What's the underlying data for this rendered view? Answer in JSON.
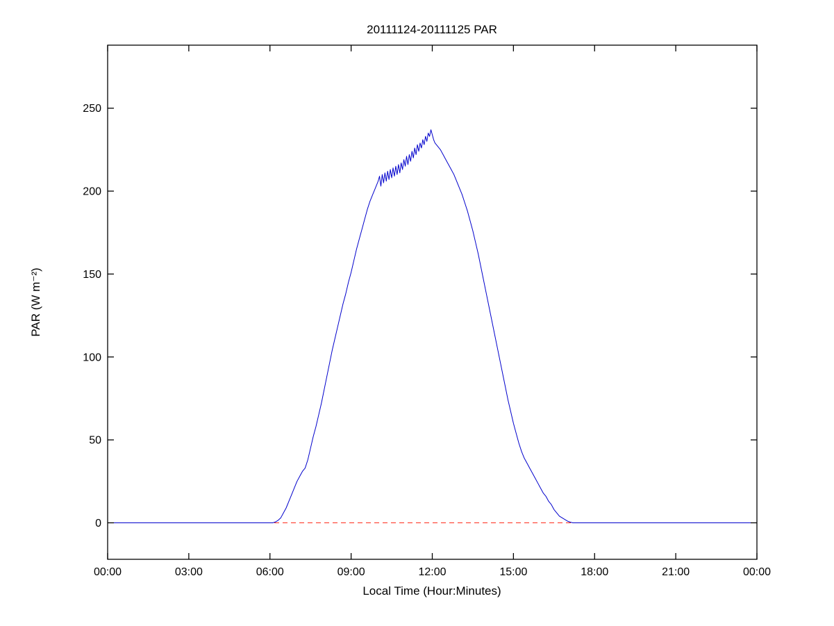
{
  "chart_data": {
    "type": "line",
    "title": "20111124-20111125 PAR",
    "xlabel": "Local Time (Hour:Minutes)",
    "ylabel": "PAR (W m⁻²)",
    "xlim": [
      0,
      24
    ],
    "ylim": [
      -22,
      288
    ],
    "grid": false,
    "legend": "none",
    "x_ticks_hours": [
      0,
      3,
      6,
      9,
      12,
      15,
      18,
      21,
      24
    ],
    "x_tick_labels": [
      "00:00",
      "03:00",
      "06:00",
      "09:00",
      "12:00",
      "15:00",
      "18:00",
      "21:00",
      "00:00"
    ],
    "y_ticks": [
      0,
      50,
      100,
      150,
      200,
      250
    ],
    "colors": {
      "background": "#ffffff",
      "axis": "#000000",
      "par_line": "#0000cc",
      "zero_line": "#ff2a1a"
    },
    "series": [
      {
        "name": "zero-reference",
        "color": "#ff2a1a",
        "style": "dashed",
        "points": [
          [
            0,
            0
          ],
          [
            24,
            0
          ]
        ]
      },
      {
        "name": "PAR",
        "color": "#0000cc",
        "style": "solid",
        "points": [
          [
            0,
            0
          ],
          [
            1,
            0
          ],
          [
            2,
            0
          ],
          [
            3,
            0
          ],
          [
            4,
            0
          ],
          [
            5,
            0
          ],
          [
            5.5,
            0
          ],
          [
            6,
            0
          ],
          [
            6.1,
            0
          ],
          [
            6.2,
            0.5
          ],
          [
            6.3,
            1.5
          ],
          [
            6.4,
            3
          ],
          [
            6.5,
            6
          ],
          [
            6.6,
            9
          ],
          [
            6.7,
            13
          ],
          [
            6.8,
            17
          ],
          [
            6.9,
            21
          ],
          [
            7,
            25
          ],
          [
            7.1,
            28
          ],
          [
            7.2,
            31
          ],
          [
            7.3,
            33
          ],
          [
            7.4,
            38
          ],
          [
            7.5,
            45
          ],
          [
            7.6,
            52
          ],
          [
            7.7,
            58
          ],
          [
            7.8,
            65
          ],
          [
            7.9,
            72
          ],
          [
            8,
            80
          ],
          [
            8.1,
            88
          ],
          [
            8.2,
            96
          ],
          [
            8.3,
            104
          ],
          [
            8.4,
            111
          ],
          [
            8.5,
            118
          ],
          [
            8.6,
            125
          ],
          [
            8.7,
            132
          ],
          [
            8.8,
            138
          ],
          [
            8.9,
            145
          ],
          [
            9,
            151
          ],
          [
            9.1,
            158
          ],
          [
            9.2,
            165
          ],
          [
            9.3,
            171
          ],
          [
            9.4,
            177
          ],
          [
            9.5,
            183
          ],
          [
            9.6,
            189
          ],
          [
            9.7,
            194
          ],
          [
            9.8,
            198
          ],
          [
            9.9,
            202
          ],
          [
            10,
            206
          ],
          [
            10.05,
            209
          ],
          [
            10.1,
            203
          ],
          [
            10.15,
            210
          ],
          [
            10.2,
            205
          ],
          [
            10.25,
            211
          ],
          [
            10.3,
            206
          ],
          [
            10.35,
            212
          ],
          [
            10.4,
            207
          ],
          [
            10.45,
            213
          ],
          [
            10.5,
            208
          ],
          [
            10.55,
            214
          ],
          [
            10.6,
            209
          ],
          [
            10.65,
            215
          ],
          [
            10.7,
            210
          ],
          [
            10.75,
            216
          ],
          [
            10.8,
            211
          ],
          [
            10.85,
            217
          ],
          [
            10.9,
            213
          ],
          [
            10.95,
            219
          ],
          [
            11,
            215
          ],
          [
            11.05,
            221
          ],
          [
            11.1,
            216
          ],
          [
            11.15,
            222
          ],
          [
            11.2,
            218
          ],
          [
            11.25,
            224
          ],
          [
            11.3,
            220
          ],
          [
            11.35,
            226
          ],
          [
            11.4,
            222
          ],
          [
            11.45,
            228
          ],
          [
            11.5,
            224
          ],
          [
            11.55,
            229
          ],
          [
            11.6,
            226
          ],
          [
            11.65,
            231
          ],
          [
            11.7,
            228
          ],
          [
            11.75,
            233
          ],
          [
            11.8,
            230
          ],
          [
            11.85,
            235
          ],
          [
            11.9,
            233
          ],
          [
            11.95,
            237
          ],
          [
            12,
            234
          ],
          [
            12.05,
            231
          ],
          [
            12.1,
            229
          ],
          [
            12.2,
            227
          ],
          [
            12.3,
            225
          ],
          [
            12.4,
            222
          ],
          [
            12.5,
            219
          ],
          [
            12.6,
            216
          ],
          [
            12.7,
            213
          ],
          [
            12.8,
            210
          ],
          [
            12.9,
            206
          ],
          [
            13,
            202
          ],
          [
            13.1,
            198
          ],
          [
            13.2,
            193
          ],
          [
            13.3,
            188
          ],
          [
            13.4,
            182
          ],
          [
            13.5,
            176
          ],
          [
            13.6,
            169
          ],
          [
            13.7,
            162
          ],
          [
            13.8,
            154
          ],
          [
            13.9,
            146
          ],
          [
            14,
            138
          ],
          [
            14.1,
            130
          ],
          [
            14.2,
            122
          ],
          [
            14.3,
            114
          ],
          [
            14.4,
            106
          ],
          [
            14.5,
            98
          ],
          [
            14.6,
            90
          ],
          [
            14.7,
            82
          ],
          [
            14.8,
            74
          ],
          [
            14.9,
            67
          ],
          [
            15,
            60
          ],
          [
            15.1,
            54
          ],
          [
            15.2,
            48
          ],
          [
            15.3,
            43
          ],
          [
            15.4,
            39
          ],
          [
            15.5,
            36
          ],
          [
            15.6,
            33
          ],
          [
            15.7,
            30
          ],
          [
            15.8,
            27
          ],
          [
            15.9,
            24
          ],
          [
            16,
            21
          ],
          [
            16.1,
            18
          ],
          [
            16.2,
            16
          ],
          [
            16.3,
            13
          ],
          [
            16.4,
            11
          ],
          [
            16.5,
            8
          ],
          [
            16.6,
            6
          ],
          [
            16.7,
            4
          ],
          [
            16.8,
            3
          ],
          [
            16.9,
            2
          ],
          [
            17,
            1
          ],
          [
            17.1,
            0.4
          ],
          [
            17.2,
            0
          ],
          [
            17.5,
            0
          ],
          [
            18,
            0
          ],
          [
            19,
            0
          ],
          [
            20,
            0
          ],
          [
            21,
            0
          ],
          [
            22,
            0
          ],
          [
            23,
            0
          ],
          [
            24,
            0
          ]
        ]
      }
    ]
  }
}
